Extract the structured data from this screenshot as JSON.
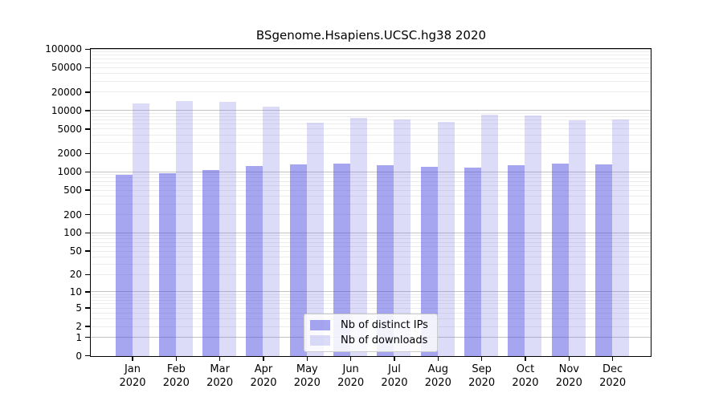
{
  "figure": {
    "title": "BSgenome.Hsapiens.UCSC.hg38 2020",
    "background_color": "#ffffff",
    "spine_color": "#000000"
  },
  "legend": {
    "items": [
      {
        "label": "Nb of distinct IPs",
        "color": "rgba(75,75,225,0.5)"
      },
      {
        "label": "Nb of downloads",
        "color": "rgba(115,115,227,0.25)"
      }
    ]
  },
  "chart_data": {
    "type": "bar",
    "title": "BSgenome.Hsapiens.UCSC.hg38 2020",
    "categories": [
      "Jan",
      "Feb",
      "Mar",
      "Apr",
      "May",
      "Jun",
      "Jul",
      "Aug",
      "Sep",
      "Oct",
      "Nov",
      "Dec"
    ],
    "year": "2020",
    "series": [
      {
        "name": "Nb of distinct IPs",
        "color": "rgba(75,75,225,0.5)",
        "values": [
          900,
          975,
          1080,
          1260,
          1330,
          1400,
          1285,
          1220,
          1175,
          1320,
          1400,
          1330
        ]
      },
      {
        "name": "Nb of downloads",
        "color": "rgba(115,115,227,0.25)",
        "values": [
          13300,
          14600,
          13900,
          11800,
          6500,
          7650,
          7350,
          6600,
          8600,
          8350,
          7100,
          7300
        ]
      }
    ],
    "yscale": "log10(1+value)",
    "ylim": [
      0,
      100000
    ],
    "yticks": [
      0,
      1,
      2,
      5,
      10,
      20,
      50,
      100,
      200,
      500,
      1000,
      2000,
      5000,
      10000,
      20000,
      50000,
      100000
    ],
    "grid": {
      "minor_color": "#ececec",
      "major_color": "#c3c3c3",
      "major_at": [
        1,
        10,
        100,
        1000,
        10000,
        100000
      ]
    },
    "legend_position": "lower center",
    "xlabel": "",
    "ylabel": ""
  }
}
